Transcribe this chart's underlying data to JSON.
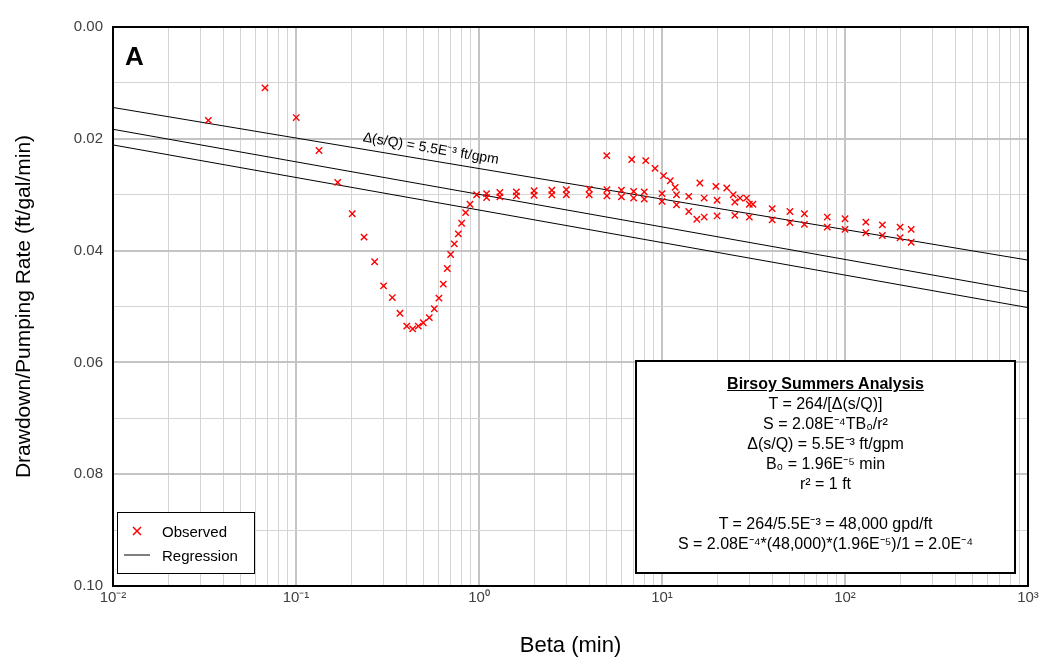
{
  "chart_data": {
    "type": "scatter",
    "xlabel": "Beta (min)",
    "ylabel": "Drawdown/Pumping Rate (ft/gal/min)",
    "log": "x",
    "grid": true,
    "legend": "bottom left",
    "xlim": [
      0.01,
      1000
    ],
    "xticks": [
      {
        "value": 0.01,
        "label": "10⁻²"
      },
      {
        "value": 0.02,
        "label": null
      },
      {
        "value": 0.03,
        "label": null
      },
      {
        "value": 0.04,
        "label": null
      },
      {
        "value": 0.05,
        "label": null
      },
      {
        "value": 0.06,
        "label": null
      },
      {
        "value": 0.07,
        "label": null
      },
      {
        "value": 0.08,
        "label": null
      },
      {
        "value": 0.09,
        "label": null
      },
      {
        "value": 0.1,
        "label": "10⁻¹"
      },
      {
        "value": 0.2,
        "label": null
      },
      {
        "value": 0.3,
        "label": null
      },
      {
        "value": 0.4,
        "label": null
      },
      {
        "value": 0.5,
        "label": null
      },
      {
        "value": 0.6,
        "label": null
      },
      {
        "value": 0.7,
        "label": null
      },
      {
        "value": 0.8,
        "label": null
      },
      {
        "value": 0.9,
        "label": null
      },
      {
        "value": 1,
        "label": "10⁰"
      },
      {
        "value": 2,
        "label": null
      },
      {
        "value": 3,
        "label": null
      },
      {
        "value": 4,
        "label": null
      },
      {
        "value": 5,
        "label": null
      },
      {
        "value": 6,
        "label": null
      },
      {
        "value": 7,
        "label": null
      },
      {
        "value": 8,
        "label": null
      },
      {
        "value": 9,
        "label": null
      },
      {
        "value": 10,
        "label": "10¹"
      },
      {
        "value": 20,
        "label": null
      },
      {
        "value": 30,
        "label": null
      },
      {
        "value": 40,
        "label": null
      },
      {
        "value": 50,
        "label": null
      },
      {
        "value": 60,
        "label": null
      },
      {
        "value": 70,
        "label": null
      },
      {
        "value": 80,
        "label": null
      },
      {
        "value": 90,
        "label": null
      },
      {
        "value": 100,
        "label": "10²"
      },
      {
        "value": 200,
        "label": null
      },
      {
        "value": 300,
        "label": null
      },
      {
        "value": 400,
        "label": null
      },
      {
        "value": 500,
        "label": null
      },
      {
        "value": 600,
        "label": null
      },
      {
        "value": 700,
        "label": null
      },
      {
        "value": 800,
        "label": null
      },
      {
        "value": 900,
        "label": null
      },
      {
        "value": 1000,
        "label": "10³"
      }
    ],
    "ylim": [
      0.1,
      0.0
    ],
    "yticks": [
      {
        "value": 0.0,
        "label": "0.00"
      },
      {
        "value": 0.01,
        "label": null
      },
      {
        "value": 0.02,
        "label": "0.02"
      },
      {
        "value": 0.03,
        "label": null
      },
      {
        "value": 0.04,
        "label": "0.04"
      },
      {
        "value": 0.05,
        "label": null
      },
      {
        "value": 0.06,
        "label": "0.06"
      },
      {
        "value": 0.07,
        "label": null
      },
      {
        "value": 0.08,
        "label": "0.08"
      },
      {
        "value": 0.09,
        "label": null
      },
      {
        "value": 0.1,
        "label": "0.10"
      }
    ],
    "series": [
      {
        "name": "Observed",
        "type": "scatter",
        "color": "#ff0000",
        "marker": "cross",
        "x": [
          0.0332,
          0.0677,
          0.1003,
          0.1336,
          0.169,
          0.203,
          0.2355,
          0.269,
          0.301,
          0.336,
          0.37,
          0.403,
          0.434,
          0.466,
          0.496,
          0.535,
          0.57,
          0.604,
          0.638,
          0.671,
          0.7,
          0.733,
          0.771,
          0.804,
          0.845,
          0.893,
          0.971,
          1.1,
          1.1,
          1.3,
          1.3,
          1.6,
          1.6,
          2,
          2,
          2.5,
          2.5,
          3,
          3,
          4,
          4,
          5,
          5,
          6,
          6,
          7,
          7,
          8,
          8,
          10,
          10,
          12,
          12,
          14,
          14,
          17,
          17,
          20,
          20,
          25,
          25,
          30,
          30,
          40,
          40,
          50,
          50,
          60,
          60,
          80,
          80,
          100,
          100,
          130,
          130,
          160,
          160,
          200,
          200,
          230,
          230,
          4.99,
          6.83,
          8.15,
          9.16,
          10.2,
          11.1,
          11.8,
          16.1,
          19.7,
          22.6,
          24.5,
          26.7,
          29,
          31.4,
          15.5
        ],
        "values": [
          0.0167,
          0.0109,
          0.0162,
          0.0221,
          0.0278,
          0.0334,
          0.0376,
          0.042,
          0.0463,
          0.0484,
          0.0512,
          0.0535,
          0.054,
          0.0535,
          0.0529,
          0.052,
          0.0504,
          0.0485,
          0.046,
          0.0432,
          0.0407,
          0.0388,
          0.037,
          0.0351,
          0.0332,
          0.0317,
          0.03,
          0.0298,
          0.0305,
          0.0296,
          0.0304,
          0.0295,
          0.0302,
          0.0293,
          0.0301,
          0.0292,
          0.03,
          0.0291,
          0.03,
          0.029,
          0.03,
          0.0291,
          0.0302,
          0.0292,
          0.0304,
          0.0294,
          0.0306,
          0.0295,
          0.0308,
          0.0298,
          0.0312,
          0.03,
          0.0318,
          0.0303,
          0.033,
          0.0306,
          0.034,
          0.031,
          0.0338,
          0.0313,
          0.0337,
          0.0317,
          0.034,
          0.0325,
          0.0345,
          0.033,
          0.035,
          0.0334,
          0.0353,
          0.034,
          0.0358,
          0.0343,
          0.0362,
          0.0349,
          0.0368,
          0.0354,
          0.0373,
          0.0358,
          0.0377,
          0.0362,
          0.0385,
          0.023,
          0.0237,
          0.0239,
          0.0253,
          0.0266,
          0.0275,
          0.0287,
          0.0279,
          0.0285,
          0.0288,
          0.03,
          0.0306,
          0.0306,
          0.0317,
          0.0344
        ]
      },
      {
        "name": "Regression",
        "type": "line",
        "color": "#000000",
        "x": [
          0.01,
          1000
        ],
        "values": [
          0.0144,
          0.0417
        ]
      },
      {
        "type": "line",
        "color": "#000000",
        "x": [
          0.01,
          1000
        ],
        "values": [
          0.0183,
          0.0474
        ]
      },
      {
        "type": "line",
        "color": "#000000",
        "x": [
          0.01,
          1000
        ],
        "values": [
          0.0211,
          0.0502
        ]
      }
    ],
    "annotations": [
      "A",
      "Δ(s/Q) = 5.5E⁻³ ft/gpm",
      "Birsoy Summers Analysis",
      "T = 264/[Δ(s/Q)]",
      "S = 2.08E⁻⁴TB₀/r²",
      "Δ(s/Q) = 5.5E⁻³ ft/gpm",
      "B₀ = 1.96E⁻⁵ min",
      "r² = 1 ft",
      "T = 264/5.5E⁻³ = 48,000 gpd/ft",
      "S = 2.08E⁻⁴*(48,000)*(1.96E⁻⁵)/1 = 2.0E⁻⁴"
    ]
  }
}
